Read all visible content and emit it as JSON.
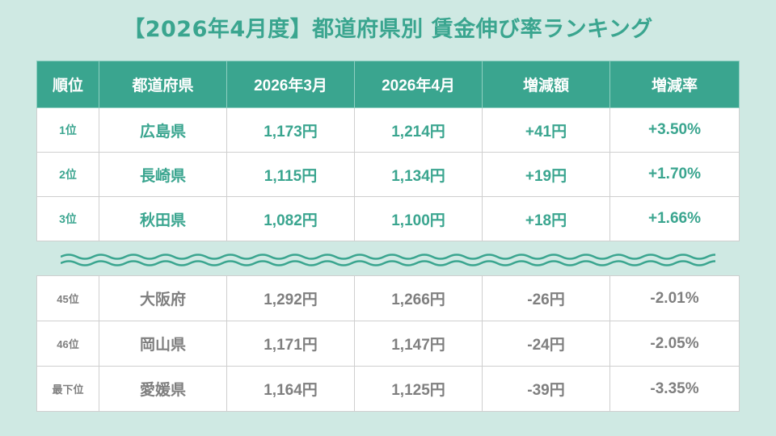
{
  "title": "【2026年4月度】都道府県別 賃金伸び率ランキング",
  "colors": {
    "accent": "#3aa58f",
    "background": "#cfe9e3",
    "muted_text": "#7f7f7f"
  },
  "table": {
    "headers": [
      "順位",
      "都道府県",
      "2026年3月",
      "2026年4月",
      "増減額",
      "増減率"
    ],
    "top_rows": [
      [
        "1位",
        "広島県",
        "1,173円",
        "1,214円",
        "+41円",
        "+3.50%"
      ],
      [
        "2位",
        "長崎県",
        "1,115円",
        "1,134円",
        "+19円",
        "+1.70%"
      ],
      [
        "3位",
        "秋田県",
        "1,082円",
        "1,100円",
        "+18円",
        "+1.66%"
      ]
    ],
    "bottom_rows": [
      [
        "45位",
        "大阪府",
        "1,292円",
        "1,266円",
        "-26円",
        "-2.01%"
      ],
      [
        "46位",
        "岡山県",
        "1,171円",
        "1,147円",
        "-24円",
        "-2.05%"
      ],
      [
        "最下位",
        "愛媛県",
        "1,164円",
        "1,125円",
        "-39円",
        "-3.35%"
      ]
    ]
  },
  "divider_icon": "wavy-break-icon"
}
